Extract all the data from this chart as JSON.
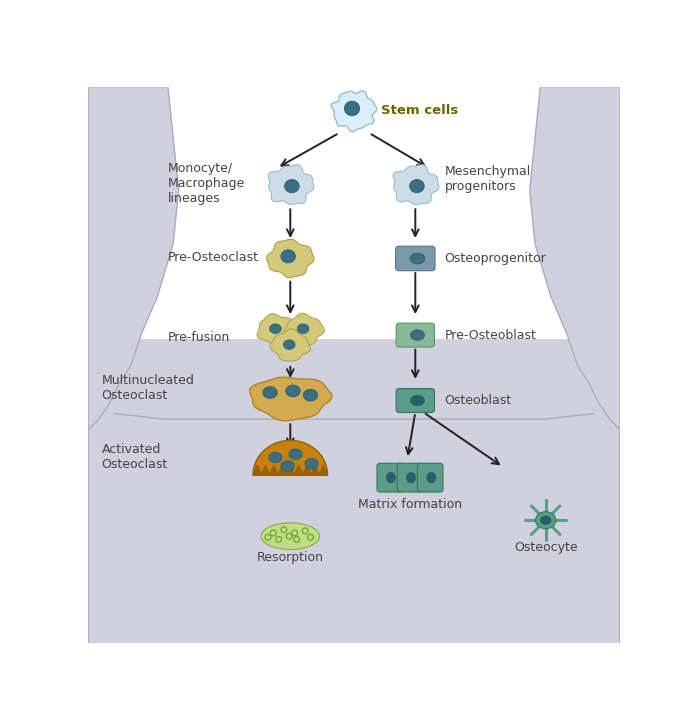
{
  "bg_color": "#ffffff",
  "labels": {
    "stem_cells": "Stem cells",
    "monocyte": "Monocyte/\nMacrophage\nlineages",
    "mesenchymal": "Mesenchymal\nprogenitors",
    "pre_osteoclast": "Pre-Osteoclast",
    "osteoprogenitor": "Osteoprogenitor",
    "pre_fusion": "Pre-fusion",
    "pre_osteoblast": "Pre-Osteoblast",
    "multinucleated": "Multinucleated\nOsteoclast",
    "osteoblast": "Osteoblast",
    "activated": "Activated\nOsteoclast",
    "matrix": "Matrix formation",
    "resorption": "Resorption",
    "osteocyte": "Osteocyte"
  },
  "colors": {
    "monocyte_outer": "#ccdde8",
    "monocyte_inner": "#3a6e80",
    "osteoclast_outer": "#d4c87a",
    "osteoclast_inner": "#3a6e80",
    "osteoprog_outer": "#7a9aaa",
    "osteoprog_inner": "#3a6e80",
    "preobl_outer": "#88b898",
    "preobl_inner": "#3a6e80",
    "obl_outer": "#5a9e8a",
    "obl_inner": "#2a5e6a",
    "multi_outer": "#c8a840",
    "multi_inner": "#3a6e80",
    "activated_outer": "#c88010",
    "activated_dark": "#8a5000",
    "resorption_fill": "#c0dc88",
    "resorption_edge": "#88aa44",
    "arrow_color": "#222222",
    "label_color": "#444444",
    "stem_label_color": "#666600",
    "bone_fill": "#d0d0de",
    "bone_edge": "#aaaabc",
    "bone_floor": "#c4c4d2"
  },
  "figsize": [
    6.91,
    7.22
  ],
  "dpi": 100
}
